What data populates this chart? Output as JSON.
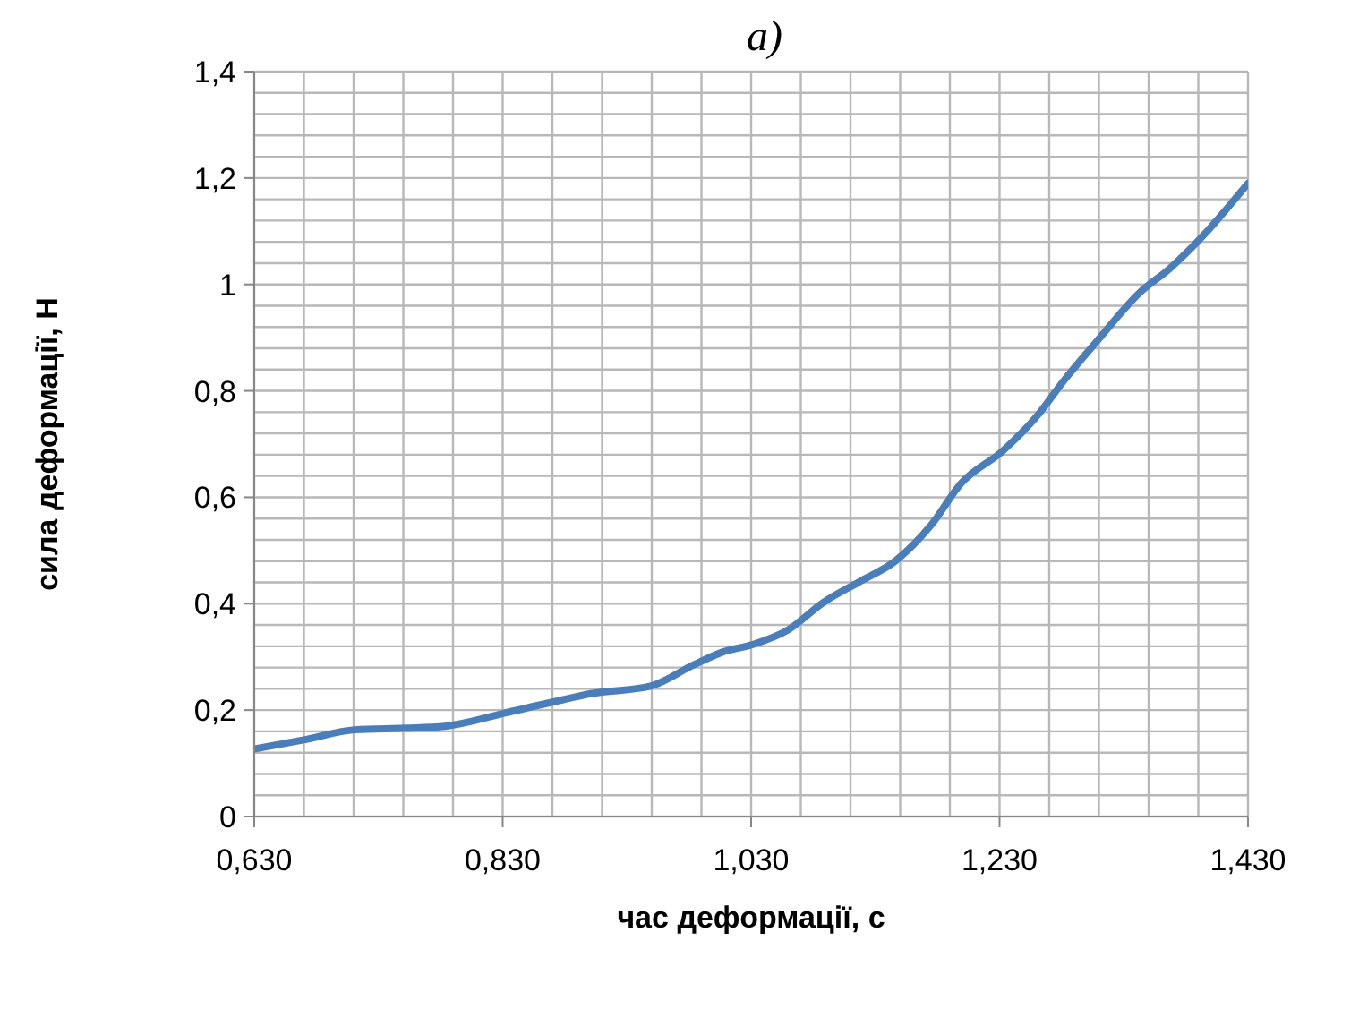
{
  "chart_data": {
    "type": "line",
    "title": "а)",
    "xlabel": "час деформації, с",
    "ylabel": "сила деформації, Н",
    "x": [
      0.63,
      0.67,
      0.711,
      0.752,
      0.781,
      0.805,
      0.831,
      0.872,
      0.901,
      0.949,
      0.983,
      1.007,
      1.031,
      1.06,
      1.088,
      1.117,
      1.146,
      1.175,
      1.199,
      1.233,
      1.261,
      1.281,
      1.309,
      1.343,
      1.367,
      1.396,
      1.415,
      1.43
    ],
    "series": [
      {
        "color": "#4a7ebb",
        "values": [
          0.127,
          0.144,
          0.163,
          0.166,
          0.169,
          0.179,
          0.194,
          0.216,
          0.231,
          0.245,
          0.284,
          0.309,
          0.323,
          0.351,
          0.402,
          0.441,
          0.48,
          0.548,
          0.626,
          0.688,
          0.755,
          0.817,
          0.895,
          0.985,
          1.03,
          1.097,
          1.148,
          1.19
        ]
      }
    ],
    "xlim": [
      0.63,
      1.43
    ],
    "xticks": [
      {
        "value": 0.63,
        "label": "0,630"
      },
      {
        "value": 0.67,
        "label": null
      },
      {
        "value": 0.71,
        "label": null
      },
      {
        "value": 0.75,
        "label": null
      },
      {
        "value": 0.79,
        "label": null
      },
      {
        "value": 0.83,
        "label": "0,830"
      },
      {
        "value": 0.87,
        "label": null
      },
      {
        "value": 0.91,
        "label": null
      },
      {
        "value": 0.95,
        "label": null
      },
      {
        "value": 0.99,
        "label": null
      },
      {
        "value": 1.03,
        "label": "1,030"
      },
      {
        "value": 1.07,
        "label": null
      },
      {
        "value": 1.11,
        "label": null
      },
      {
        "value": 1.15,
        "label": null
      },
      {
        "value": 1.19,
        "label": null
      },
      {
        "value": 1.23,
        "label": "1,230"
      },
      {
        "value": 1.27,
        "label": null
      },
      {
        "value": 1.31,
        "label": null
      },
      {
        "value": 1.35,
        "label": null
      },
      {
        "value": 1.39,
        "label": null
      },
      {
        "value": 1.43,
        "label": "1,430"
      }
    ],
    "ylim": [
      0,
      1.4
    ],
    "yticks": [
      0,
      {
        "value": 0.04,
        "label": null
      },
      {
        "value": 0.08,
        "label": null
      },
      {
        "value": 0.12,
        "label": null
      },
      {
        "value": 0.16,
        "label": null
      },
      {
        "value": 0.2,
        "label": "0,2"
      },
      {
        "value": 0.24,
        "label": null
      },
      {
        "value": 0.28,
        "label": null
      },
      {
        "value": 0.32,
        "label": null
      },
      {
        "value": 0.36,
        "label": null
      },
      {
        "value": 0.4,
        "label": "0,4"
      },
      {
        "value": 0.44,
        "label": null
      },
      {
        "value": 0.48,
        "label": null
      },
      {
        "value": 0.52,
        "label": null
      },
      {
        "value": 0.56,
        "label": null
      },
      {
        "value": 0.6,
        "label": "0,6"
      },
      {
        "value": 0.64,
        "label": null
      },
      {
        "value": 0.68,
        "label": null
      },
      {
        "value": 0.72,
        "label": null
      },
      {
        "value": 0.76,
        "label": null
      },
      {
        "value": 0.8,
        "label": "0,8"
      },
      {
        "value": 0.84,
        "label": null
      },
      {
        "value": 0.88,
        "label": null
      },
      {
        "value": 0.92,
        "label": null
      },
      {
        "value": 0.96,
        "label": null
      },
      1,
      {
        "value": 1.04,
        "label": null
      },
      {
        "value": 1.08,
        "label": null
      },
      {
        "value": 1.12,
        "label": null
      },
      {
        "value": 1.16,
        "label": null
      },
      {
        "value": 1.2,
        "label": "1,2"
      },
      {
        "value": 1.24,
        "label": null
      },
      {
        "value": 1.28,
        "label": null
      },
      {
        "value": 1.32,
        "label": null
      },
      {
        "value": 1.36,
        "label": null
      },
      {
        "value": 1.4,
        "label": "1,4"
      }
    ],
    "grid": true,
    "marker": "none",
    "line_style": "solid",
    "legend": false
  }
}
